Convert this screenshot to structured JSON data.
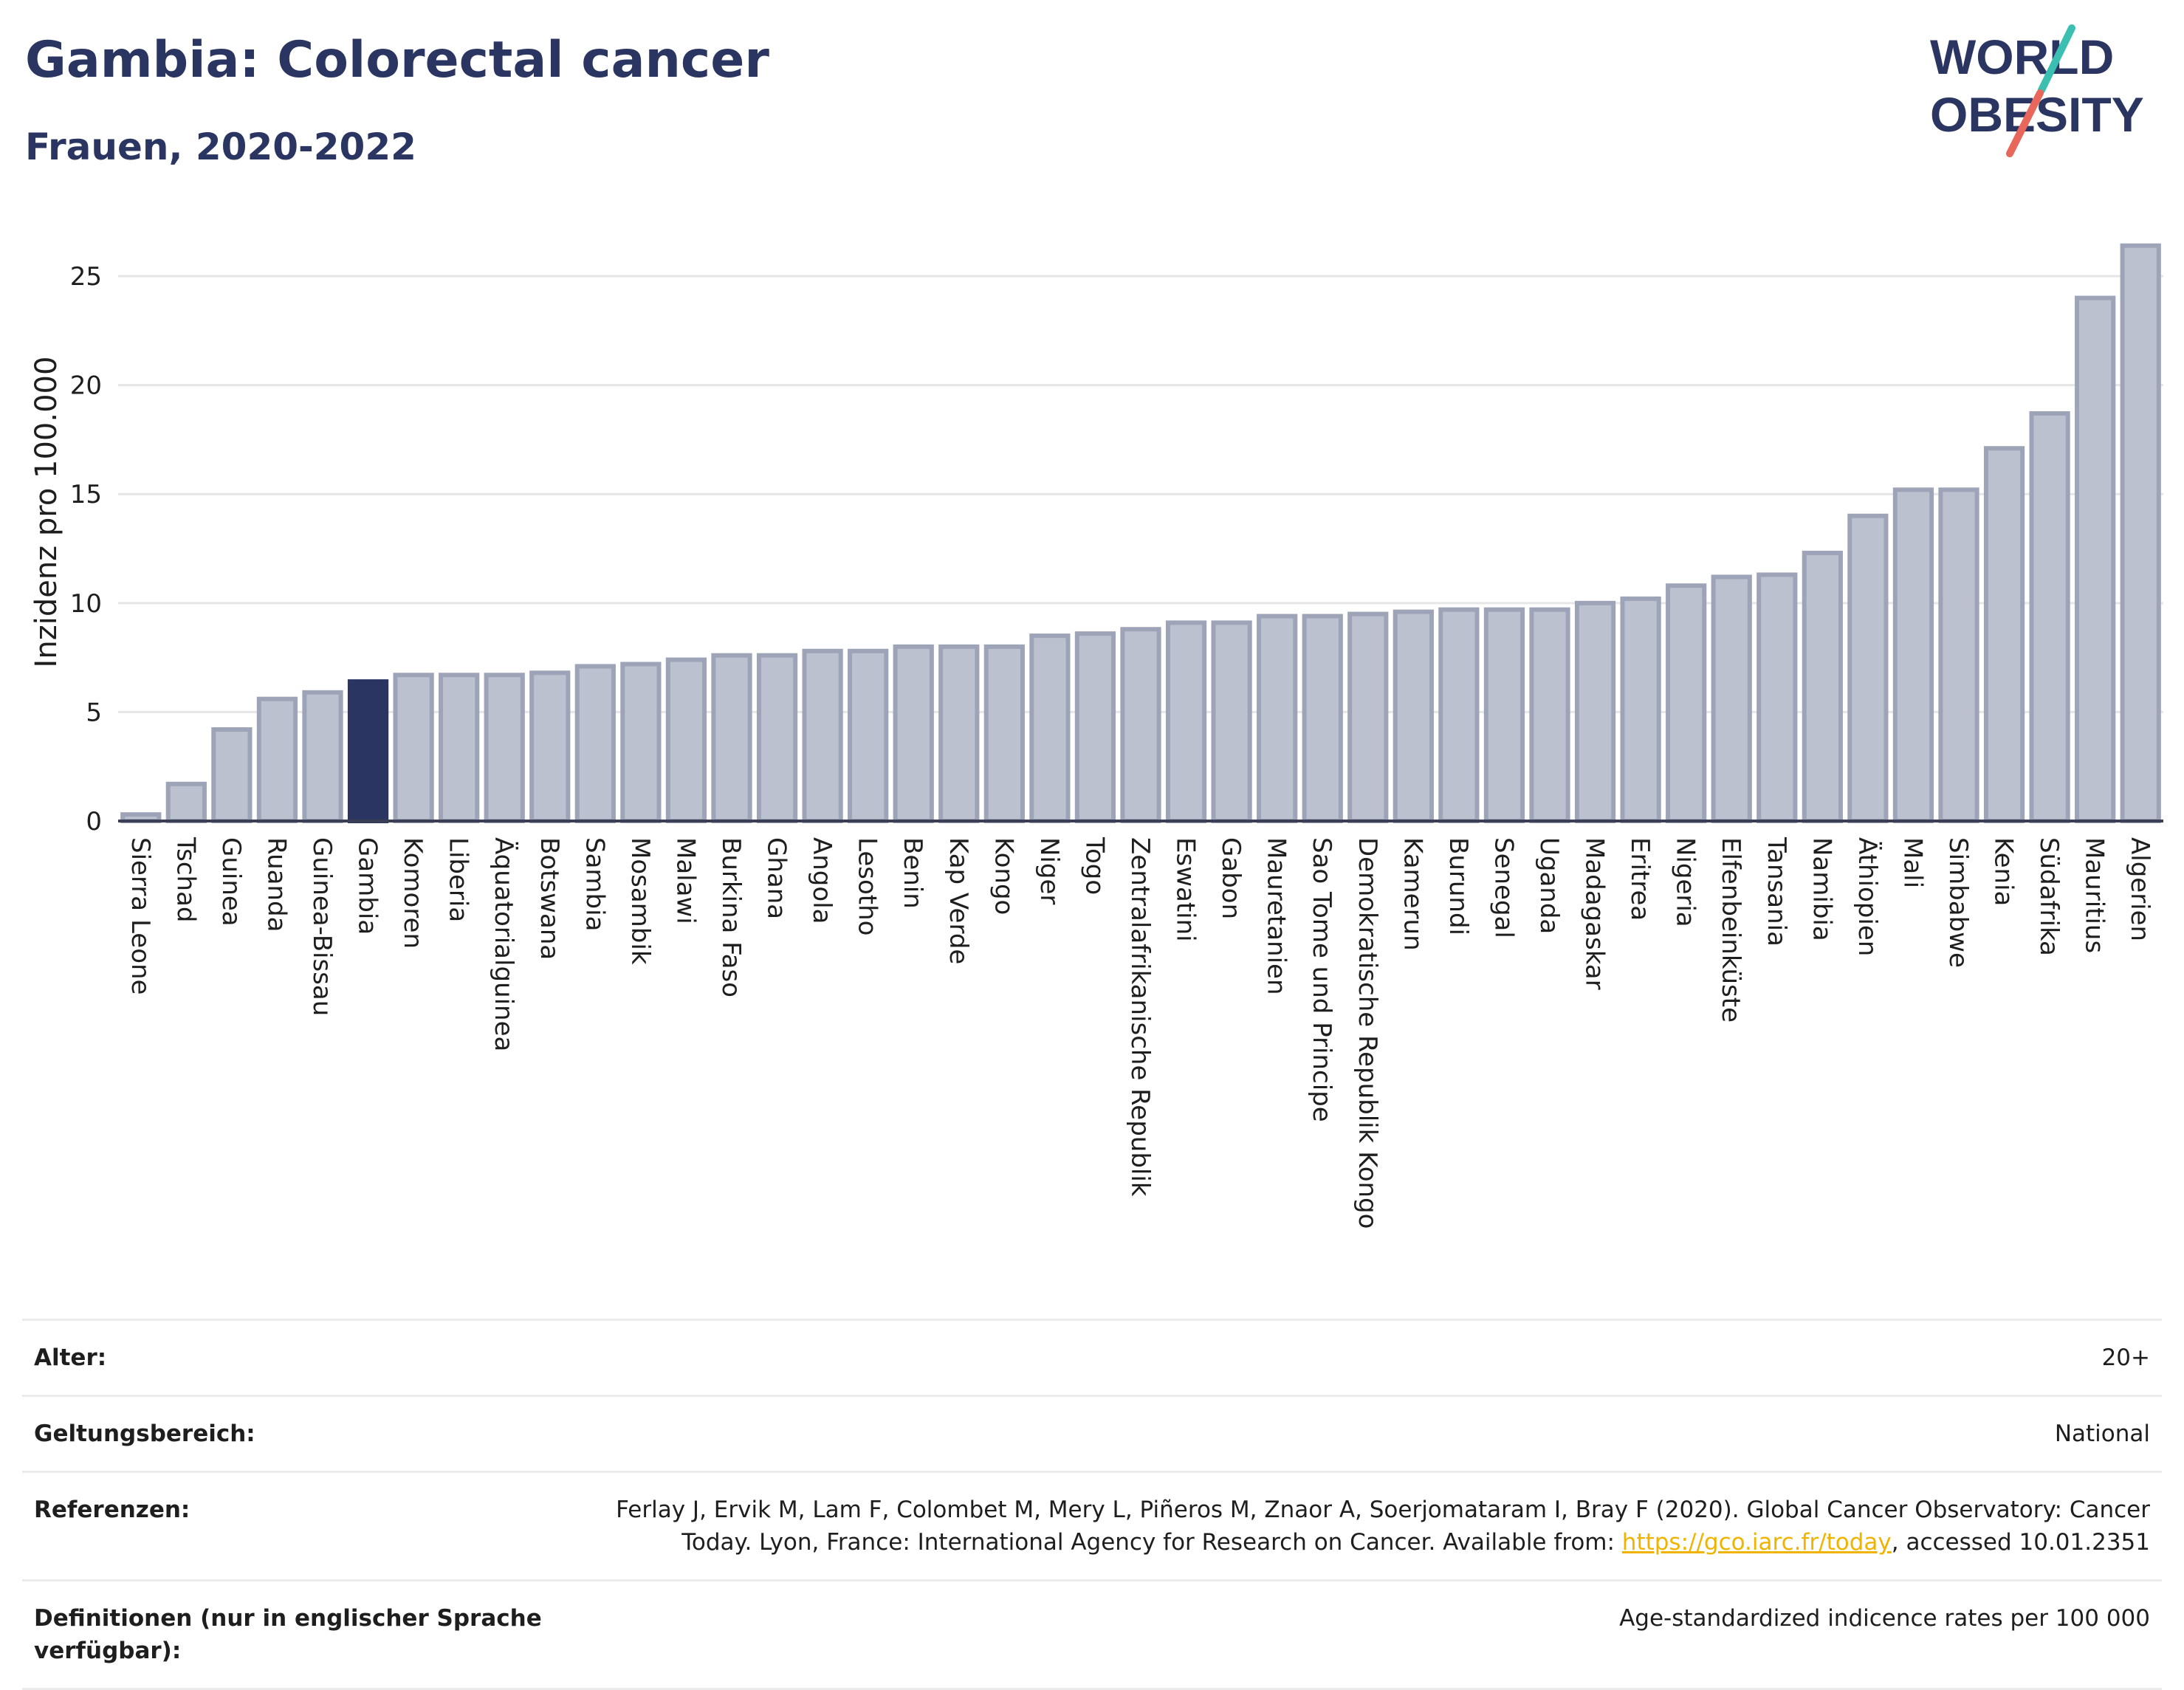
{
  "header": {
    "title": "Gambia: Colorectal cancer",
    "subtitle": "Frauen, 2020-2022",
    "logo_line1": "WORLD",
    "logo_line2": "OBESITY"
  },
  "colors": {
    "bar": "#bcc1cf",
    "bar_border": "#9ea4b8",
    "highlight": "#2b3561",
    "grid": "#e6e6e6",
    "axis": "#3a3f55",
    "logo_teal": "#3bbfb0",
    "logo_red": "#e8675a"
  },
  "chart_data": {
    "type": "bar",
    "ylabel": "Inzidenz pro 100.000",
    "ylim": [
      0,
      27
    ],
    "yticks": [
      0,
      5,
      10,
      15,
      20,
      25
    ],
    "grid": true,
    "highlight": "Gambia",
    "categories": [
      "Sierra Leone",
      "Tschad",
      "Guinea",
      "Ruanda",
      "Guinea-Bissau",
      "Gambia",
      "Komoren",
      "Liberia",
      "Äquatorialguinea",
      "Botswana",
      "Sambia",
      "Mosambik",
      "Malawi",
      "Burkina Faso",
      "Ghana",
      "Angola",
      "Lesotho",
      "Benin",
      "Kap Verde",
      "Kongo",
      "Niger",
      "Togo",
      "Zentralafrikanische Republik",
      "Eswatini",
      "Gabon",
      "Mauretanien",
      "Sao Tome und Principe",
      "Demokratische Republik Kongo",
      "Kamerun",
      "Burundi",
      "Senegal",
      "Uganda",
      "Madagaskar",
      "Eritrea",
      "Nigeria",
      "Elfenbeinküste",
      "Tansania",
      "Namibia",
      "Äthiopien",
      "Mali",
      "Simbabwe",
      "Kenia",
      "Südafrika",
      "Mauritius",
      "Algerien"
    ],
    "values": [
      0.3,
      1.7,
      4.2,
      5.6,
      5.9,
      6.4,
      6.7,
      6.7,
      6.7,
      6.8,
      7.1,
      7.2,
      7.4,
      7.6,
      7.6,
      7.8,
      7.8,
      8.0,
      8.0,
      8.0,
      8.5,
      8.6,
      8.8,
      9.1,
      9.1,
      9.4,
      9.4,
      9.5,
      9.6,
      9.7,
      9.7,
      9.7,
      10.0,
      10.2,
      10.8,
      11.2,
      11.3,
      12.3,
      14.0,
      15.2,
      15.2,
      17.1,
      18.7,
      24.0,
      26.4
    ]
  },
  "meta": {
    "age_label": "Alter:",
    "age_value": "20+",
    "scope_label": "Geltungsbereich:",
    "scope_value": "National",
    "refs_label": "Referenzen:",
    "refs_value_line1": "Ferlay J, Ervik M, Lam F, Colombet M, Mery L, Piñeros M, Znaor A, Soerjomataram I, Bray F (2020). Global Cancer Observatory: Cancer",
    "refs_value_line2a": "Today. Lyon, France: International Agency for Research on Cancer. Available from: ",
    "refs_link": "https://gco.iarc.fr/today",
    "refs_value_line2b": ", accessed 10.01.2351",
    "defs_label": "Definitionen (nur in englischer Sprache verfügbar):",
    "defs_value": "Age-standardized indicence rates per 100 000"
  }
}
